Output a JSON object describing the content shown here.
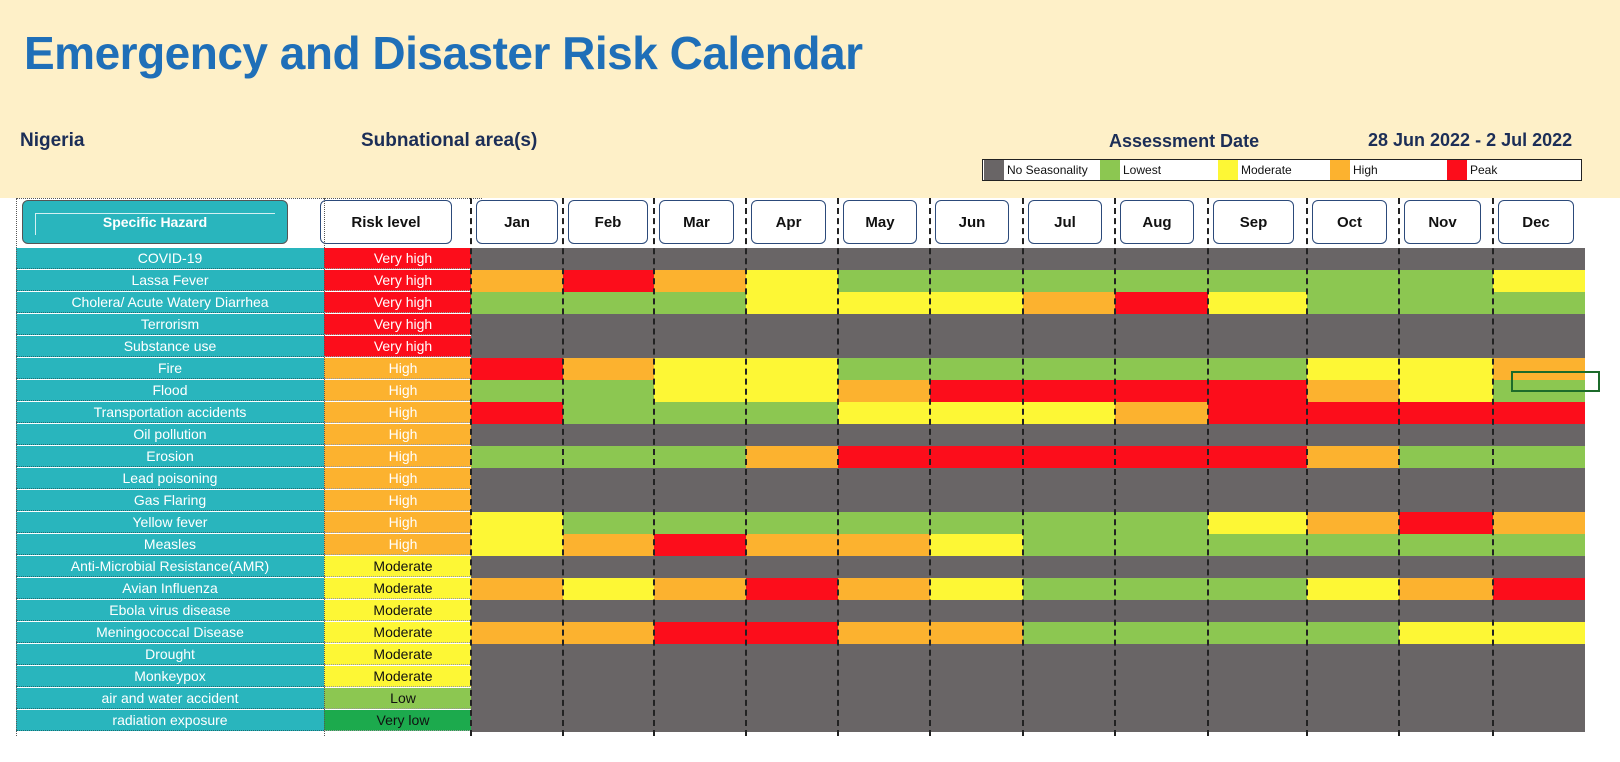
{
  "header": {
    "title": "Emergency and Disaster Risk Calendar",
    "country": "Nigeria",
    "subnational_label": "Subnational area(s)",
    "assessment_label": "Assessment Date",
    "assessment_date": "28 Jun 2022 - 2 Jul 2022"
  },
  "colors": {
    "banner": "#fef0c8",
    "title": "#1f6fb8",
    "hazard_bg": "#29b5bd",
    "levels": {
      "none": "#696566",
      "low": "#8cc751",
      "mod": "#fdf735",
      "high": "#fcb22f",
      "peak": "#fc0d1b"
    },
    "risk": {
      "Very high": "#fc0d1b",
      "High": "#fcb22f",
      "Moderate": "#fdf735",
      "Low": "#8cc751",
      "Very low": "#1caa4d"
    }
  },
  "legend": [
    {
      "level": "none",
      "label": "No Seasonality"
    },
    {
      "level": "low",
      "label": "Lowest"
    },
    {
      "level": "mod",
      "label": "Moderate"
    },
    {
      "level": "high",
      "label": "High"
    },
    {
      "level": "peak",
      "label": "Peak"
    }
  ],
  "columns": {
    "hazard": "Specific Hazard",
    "risk": "Risk level",
    "months": [
      "Jan",
      "Feb",
      "Mar",
      "Apr",
      "May",
      "Jun",
      "Jul",
      "Aug",
      "Sep",
      "Oct",
      "Nov",
      "Dec"
    ]
  },
  "rows": [
    {
      "hazard": "COVID-19",
      "risk": "Very high",
      "months": [
        "none",
        "none",
        "none",
        "none",
        "none",
        "none",
        "none",
        "none",
        "none",
        "none",
        "none",
        "none"
      ]
    },
    {
      "hazard": "Lassa Fever",
      "risk": "Very high",
      "months": [
        "high",
        "peak",
        "high",
        "mod",
        "low",
        "low",
        "low",
        "low",
        "low",
        "low",
        "low",
        "mod"
      ]
    },
    {
      "hazard": "Cholera/ Acute Watery Diarrhea",
      "risk": "Very high",
      "months": [
        "low",
        "low",
        "low",
        "mod",
        "mod",
        "mod",
        "high",
        "peak",
        "mod",
        "low",
        "low",
        "low"
      ]
    },
    {
      "hazard": "Terrorism",
      "risk": "Very high",
      "months": [
        "none",
        "none",
        "none",
        "none",
        "none",
        "none",
        "none",
        "none",
        "none",
        "none",
        "none",
        "none"
      ]
    },
    {
      "hazard": "Substance use",
      "risk": "Very high",
      "months": [
        "none",
        "none",
        "none",
        "none",
        "none",
        "none",
        "none",
        "none",
        "none",
        "none",
        "none",
        "none"
      ]
    },
    {
      "hazard": "Fire",
      "risk": "High",
      "months": [
        "peak",
        "high",
        "mod",
        "mod",
        "low",
        "low",
        "low",
        "low",
        "low",
        "mod",
        "mod",
        "high"
      ]
    },
    {
      "hazard": "Flood",
      "risk": "High",
      "months": [
        "low",
        "low",
        "mod",
        "mod",
        "high",
        "peak",
        "peak",
        "peak",
        "peak",
        "high",
        "mod",
        "low"
      ]
    },
    {
      "hazard": "Transportation accidents",
      "risk": "High",
      "months": [
        "peak",
        "low",
        "low",
        "low",
        "mod",
        "mod",
        "mod",
        "high",
        "peak",
        "peak",
        "peak",
        "peak"
      ]
    },
    {
      "hazard": "Oil pollution",
      "risk": "High",
      "months": [
        "none",
        "none",
        "none",
        "none",
        "none",
        "none",
        "none",
        "none",
        "none",
        "none",
        "none",
        "none"
      ]
    },
    {
      "hazard": "Erosion",
      "risk": "High",
      "months": [
        "low",
        "low",
        "low",
        "high",
        "peak",
        "peak",
        "peak",
        "peak",
        "peak",
        "high",
        "low",
        "low"
      ]
    },
    {
      "hazard": "Lead poisoning",
      "risk": "High",
      "months": [
        "none",
        "none",
        "none",
        "none",
        "none",
        "none",
        "none",
        "none",
        "none",
        "none",
        "none",
        "none"
      ]
    },
    {
      "hazard": "Gas Flaring",
      "risk": "High",
      "months": [
        "none",
        "none",
        "none",
        "none",
        "none",
        "none",
        "none",
        "none",
        "none",
        "none",
        "none",
        "none"
      ]
    },
    {
      "hazard": "Yellow fever",
      "risk": "High",
      "months": [
        "mod",
        "low",
        "low",
        "low",
        "low",
        "low",
        "low",
        "low",
        "mod",
        "high",
        "peak",
        "high"
      ]
    },
    {
      "hazard": "Measles",
      "risk": "High",
      "months": [
        "mod",
        "high",
        "peak",
        "high",
        "high",
        "mod",
        "low",
        "low",
        "low",
        "low",
        "low",
        "low"
      ]
    },
    {
      "hazard": "Anti-Microbial Resistance(AMR)",
      "risk": "Moderate",
      "months": [
        "none",
        "none",
        "none",
        "none",
        "none",
        "none",
        "none",
        "none",
        "none",
        "none",
        "none",
        "none"
      ]
    },
    {
      "hazard": "Avian Influenza",
      "risk": "Moderate",
      "months": [
        "high",
        "mod",
        "high",
        "peak",
        "high",
        "mod",
        "low",
        "low",
        "low",
        "mod",
        "high",
        "peak"
      ]
    },
    {
      "hazard": "Ebola virus disease",
      "risk": "Moderate",
      "months": [
        "none",
        "none",
        "none",
        "none",
        "none",
        "none",
        "none",
        "none",
        "none",
        "none",
        "none",
        "none"
      ]
    },
    {
      "hazard": "Meningococcal Disease",
      "risk": "Moderate",
      "months": [
        "high",
        "high",
        "peak",
        "peak",
        "high",
        "high",
        "low",
        "low",
        "low",
        "low",
        "mod",
        "mod"
      ]
    },
    {
      "hazard": "Drought",
      "risk": "Moderate",
      "months": [
        "none",
        "none",
        "none",
        "none",
        "none",
        "none",
        "none",
        "none",
        "none",
        "none",
        "none",
        "none"
      ]
    },
    {
      "hazard": "Monkeypox",
      "risk": "Moderate",
      "months": [
        "none",
        "none",
        "none",
        "none",
        "none",
        "none",
        "none",
        "none",
        "none",
        "none",
        "none",
        "none"
      ]
    },
    {
      "hazard": "air and water accident",
      "risk": "Low",
      "months": [
        "none",
        "none",
        "none",
        "none",
        "none",
        "none",
        "none",
        "none",
        "none",
        "none",
        "none",
        "none"
      ]
    },
    {
      "hazard": "radiation exposure",
      "risk": "Very low",
      "months": [
        "none",
        "none",
        "none",
        "none",
        "none",
        "none",
        "none",
        "none",
        "none",
        "none",
        "none",
        "none"
      ]
    }
  ]
}
